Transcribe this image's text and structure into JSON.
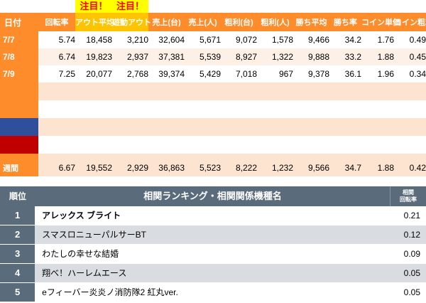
{
  "attention": {
    "label1": "注目！",
    "label2": "注目！"
  },
  "headers": [
    "日付",
    "回転率",
    "アウト平均",
    "遊動アウト",
    "売上(台)",
    "売上(人)",
    "粗利(台)",
    "粗利(人)",
    "勝ち平均",
    "勝ち率",
    "コイン単価",
    "コイン粗利"
  ],
  "rows": [
    {
      "date": "7/7",
      "v": [
        "5.74",
        "18,458",
        "3,210",
        "32,604",
        "5,671",
        "9,072",
        "1,578",
        "9,466",
        "34.2",
        "1.76",
        "0.49"
      ]
    },
    {
      "date": "7/8",
      "v": [
        "6.74",
        "19,823",
        "2,937",
        "37,381",
        "5,539",
        "8,927",
        "1,322",
        "9,888",
        "33.2",
        "1.88",
        "0.45"
      ]
    },
    {
      "date": "7/9",
      "v": [
        "7.25",
        "20,077",
        "2,768",
        "39,374",
        "5,429",
        "7,018",
        "967",
        "9,378",
        "36.1",
        "1.96",
        "0.34"
      ]
    }
  ],
  "week": {
    "label": "週間",
    "v": [
      "6.67",
      "19,552",
      "2,929",
      "36,863",
      "5,523",
      "8,222",
      "1,232",
      "9,566",
      "34.7",
      "1.88",
      "0.42"
    ]
  },
  "colors": {
    "orange": "#ff8c2a",
    "highlight": "#ffc400",
    "blue": "#2f4f9a",
    "red": "#c00000",
    "rank_header": "#5a6b7b"
  },
  "ranking": {
    "col_rank": "順位",
    "col_name": "相関ランキング・相関関係機種名",
    "col_value_line1": "相関",
    "col_value_line2": "回転率",
    "items": [
      {
        "rank": "1",
        "name": "アレックス ブライト",
        "value": "0.21"
      },
      {
        "rank": "2",
        "name": "スマスロニューパルサーBT",
        "value": "0.12"
      },
      {
        "rank": "3",
        "name": "わたしの幸せな結婚",
        "value": "0.09"
      },
      {
        "rank": "4",
        "name": "翔べ！ハーレムエース",
        "value": "0.05"
      },
      {
        "rank": "5",
        "name": "eフィーバー炎炎ノ消防隊2 紅丸ver.",
        "value": "0.05"
      }
    ]
  }
}
